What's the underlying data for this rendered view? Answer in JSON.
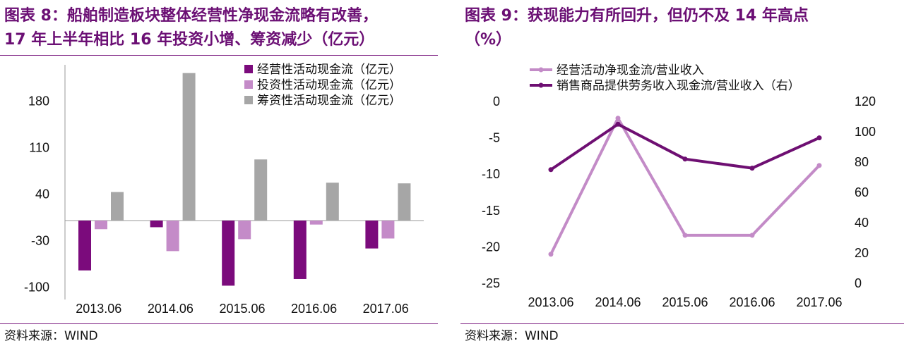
{
  "left": {
    "title_line1": "图表 8：船舶制造板块整体经营性净现金流略有改善，",
    "title_line2": "17 年上半年相比 16 年投资小增、筹资减少（亿元）",
    "source": "资料来源：WIND"
  },
  "right": {
    "title_line1": "图表 9：获现能力有所回升，但仍不及 14 年高点",
    "title_line2": "（%）",
    "source": "资料来源：WIND"
  },
  "chart_data": [
    {
      "type": "bar",
      "categories": [
        "2013.06",
        "2014.06",
        "2015.06",
        "2016.06",
        "2017.06"
      ],
      "series": [
        {
          "name": "经营性活动现金流（亿元）",
          "color": "#7b0b7c",
          "values": [
            -75,
            -10,
            -98,
            -88,
            -42
          ]
        },
        {
          "name": "投资性活动现金流（亿元）",
          "color": "#c48bc8",
          "values": [
            -13,
            -46,
            -28,
            -6,
            -27
          ]
        },
        {
          "name": "筹资性活动现金流（亿元）",
          "color": "#a6a6a6",
          "values": [
            43,
            222,
            92,
            57,
            56
          ]
        }
      ],
      "yticks": [
        180,
        110,
        40,
        -30,
        -100
      ],
      "ylim": [
        -100,
        222
      ],
      "legend": "top-right"
    },
    {
      "type": "line",
      "categories": [
        "2013.06",
        "2014.06",
        "2015.06",
        "2016.06",
        "2017.06"
      ],
      "series": [
        {
          "name": "经营活动净现金流/营业收入",
          "axis": "left",
          "color": "#c38bc7",
          "values": [
            -21,
            -2.3,
            -18.4,
            -18.4,
            -8.8
          ]
        },
        {
          "name": "销售商品提供劳务收入现金流/营业收入（右）",
          "axis": "right",
          "color": "#6e0f72",
          "values": [
            75,
            105,
            82,
            76,
            96
          ]
        }
      ],
      "yticks_left": [
        0,
        -5,
        -10,
        -15,
        -20,
        -25
      ],
      "yticks_right": [
        120,
        100,
        80,
        60,
        40,
        20,
        0
      ],
      "ylim_left": [
        -25,
        0
      ],
      "ylim_right": [
        0,
        120
      ],
      "legend": "top"
    }
  ]
}
